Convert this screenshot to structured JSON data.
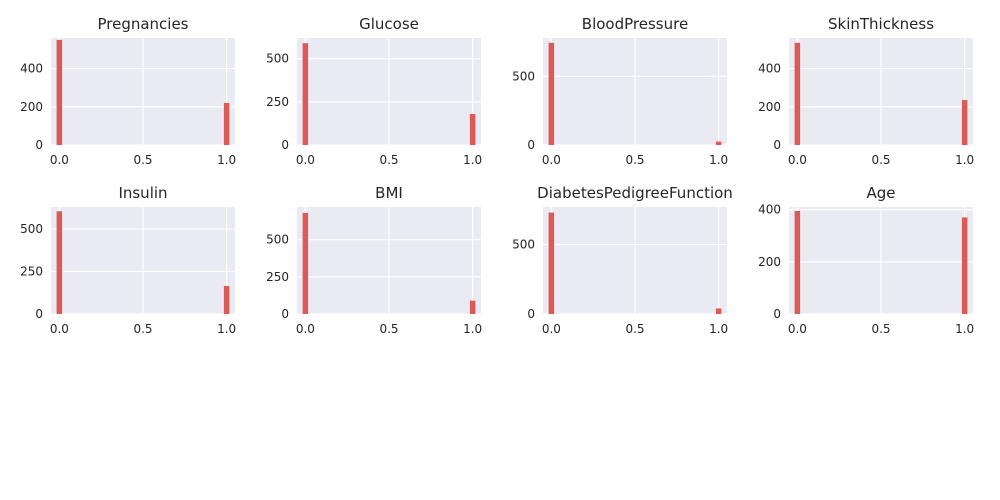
{
  "colors": {
    "bar": "#dc5a56",
    "plot_background": "#eaeaf2",
    "grid": "#ffffff",
    "text": "#262626",
    "figure_background": "#ffffff"
  },
  "chart_data": [
    {
      "type": "bar",
      "title": "Pregnancies",
      "x": [
        0.0,
        1.0
      ],
      "values": [
        550,
        220
      ],
      "xlim": [
        -0.05,
        1.05
      ],
      "ylim": [
        0,
        560
      ],
      "xticks": [
        "0.0",
        "0.5",
        "1.0"
      ],
      "xtick_values": [
        0.0,
        0.5,
        1.0
      ],
      "yticks": [
        "0",
        "200",
        "400"
      ],
      "ytick_values": [
        0,
        200,
        400
      ],
      "grid": true
    },
    {
      "type": "bar",
      "title": "Glucose",
      "x": [
        0.0,
        1.0
      ],
      "values": [
        590,
        180
      ],
      "xlim": [
        -0.05,
        1.05
      ],
      "ylim": [
        0,
        620
      ],
      "xticks": [
        "0.0",
        "0.5",
        "1.0"
      ],
      "xtick_values": [
        0.0,
        0.5,
        1.0
      ],
      "yticks": [
        "0",
        "250",
        "500"
      ],
      "ytick_values": [
        0,
        250,
        500
      ],
      "grid": true
    },
    {
      "type": "bar",
      "title": "BloodPressure",
      "x": [
        0.0,
        1.0
      ],
      "values": [
        745,
        25
      ],
      "xlim": [
        -0.05,
        1.05
      ],
      "ylim": [
        0,
        780
      ],
      "xticks": [
        "0.0",
        "0.5",
        "1.0"
      ],
      "xtick_values": [
        0.0,
        0.5,
        1.0
      ],
      "yticks": [
        "0",
        "500"
      ],
      "ytick_values": [
        0,
        500
      ],
      "grid": true
    },
    {
      "type": "bar",
      "title": "SkinThickness",
      "x": [
        0.0,
        1.0
      ],
      "values": [
        535,
        235
      ],
      "xlim": [
        -0.05,
        1.05
      ],
      "ylim": [
        0,
        560
      ],
      "xticks": [
        "0.0",
        "0.5",
        "1.0"
      ],
      "xtick_values": [
        0.0,
        0.5,
        1.0
      ],
      "yticks": [
        "0",
        "200",
        "400"
      ],
      "ytick_values": [
        0,
        200,
        400
      ],
      "grid": true
    },
    {
      "type": "bar",
      "title": "Insulin",
      "x": [
        0.0,
        1.0
      ],
      "values": [
        605,
        165
      ],
      "xlim": [
        -0.05,
        1.05
      ],
      "ylim": [
        0,
        630
      ],
      "xticks": [
        "0.0",
        "0.5",
        "1.0"
      ],
      "xtick_values": [
        0.0,
        0.5,
        1.0
      ],
      "yticks": [
        "0",
        "250",
        "500"
      ],
      "ytick_values": [
        0,
        250,
        500
      ],
      "grid": true
    },
    {
      "type": "bar",
      "title": "BMI",
      "x": [
        0.0,
        1.0
      ],
      "values": [
        680,
        90
      ],
      "xlim": [
        -0.05,
        1.05
      ],
      "ylim": [
        0,
        720
      ],
      "xticks": [
        "0.0",
        "0.5",
        "1.0"
      ],
      "xtick_values": [
        0.0,
        0.5,
        1.0
      ],
      "yticks": [
        "0",
        "250",
        "500"
      ],
      "ytick_values": [
        0,
        250,
        500
      ],
      "grid": true
    },
    {
      "type": "bar",
      "title": "DiabetesPedigreeFunction",
      "x": [
        0.0,
        1.0
      ],
      "values": [
        730,
        40
      ],
      "xlim": [
        -0.05,
        1.05
      ],
      "ylim": [
        0,
        770
      ],
      "xticks": [
        "0.0",
        "0.5",
        "1.0"
      ],
      "xtick_values": [
        0.0,
        0.5,
        1.0
      ],
      "yticks": [
        "0",
        "500"
      ],
      "ytick_values": [
        0,
        500
      ],
      "grid": true
    },
    {
      "type": "bar",
      "title": "Age",
      "x": [
        0.0,
        1.0
      ],
      "values": [
        395,
        370
      ],
      "xlim": [
        -0.05,
        1.05
      ],
      "ylim": [
        0,
        410
      ],
      "xticks": [
        "0.0",
        "0.5",
        "1.0"
      ],
      "xtick_values": [
        0.0,
        0.5,
        1.0
      ],
      "yticks": [
        "0",
        "200",
        "400"
      ],
      "ytick_values": [
        0,
        200,
        400
      ],
      "grid": true
    }
  ]
}
